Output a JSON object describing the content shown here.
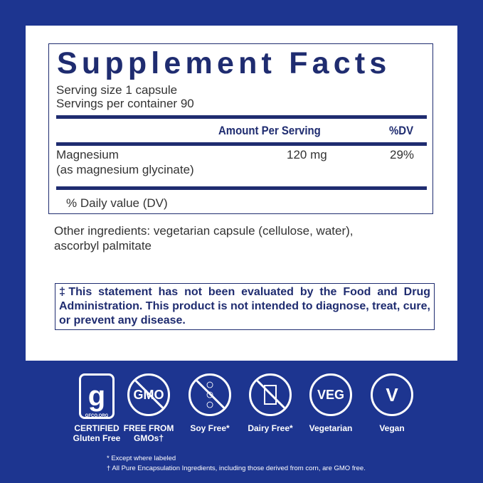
{
  "facts": {
    "title": "Supplement Facts",
    "serving_size": "Serving size  1 capsule",
    "servings_per_container": "Servings per container  90",
    "col_amount": "Amount Per Serving",
    "col_dv": "%DV",
    "rows": [
      {
        "name": "Magnesium",
        "sub": "(as magnesium glycinate)",
        "amount": "120 mg",
        "dv": "29%"
      }
    ],
    "footnote": "% Daily value (DV)"
  },
  "other_ingredients": [
    "Other ingredients: vegetarian capsule (cellulose, water),",
    "ascorbyl palmitate"
  ],
  "statement": "‡This statement has not been evaluated by the Food and Drug Administration. This product is not intended to diagnose, treat, cure, or prevent any disease.",
  "badges": [
    {
      "icon": "gluten-free-certified-icon",
      "logo_text": "GFCO.ORG",
      "line1": "CERTIFIED",
      "line2": "Gluten Free"
    },
    {
      "icon": "no-gmo-icon",
      "glyph": "GMO",
      "line1": "FREE FROM",
      "line2": "GMOs†"
    },
    {
      "icon": "soy-free-icon",
      "line1": "Soy Free*"
    },
    {
      "icon": "dairy-free-icon",
      "line1": "Dairy Free*"
    },
    {
      "icon": "vegetarian-icon",
      "glyph": "VEG",
      "line1": "Vegetarian"
    },
    {
      "icon": "vegan-icon",
      "glyph": "V",
      "line1": "Vegan"
    }
  ],
  "footnotes": [
    "*  Except where labeled",
    "†  All Pure Encapsulation Ingredients, including those derived from corn, are GMO free."
  ],
  "colors": {
    "background": "#1d3590",
    "navy": "#1f2c70",
    "panel": "#ffffff"
  }
}
